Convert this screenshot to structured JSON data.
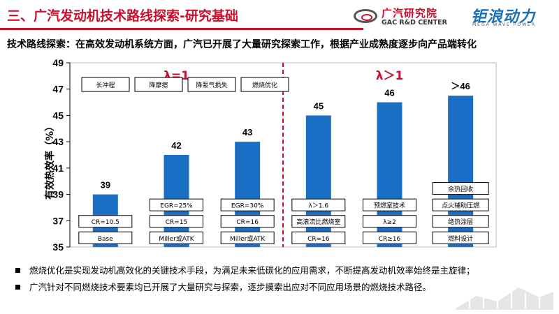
{
  "header": {
    "title": "三、广汽发动机技术路线探索-研究基础",
    "logo_gac_cn": "广汽研究院",
    "logo_gac_en": "GAC R&D CENTER",
    "logo_wave_cn": "钜浪动力",
    "logo_wave_en": "MEGA WAVE POWER"
  },
  "subtitle": "技术路线探索：在高效发动机系统方面，广汽已开展了大量研究探索工作，根据产业成熟度逐步向产品端转化",
  "colors": {
    "accent": "#c8102e",
    "bar": "#1a6fc4",
    "divider": "#c8102e"
  },
  "chart_data": {
    "type": "bar",
    "ylabel": "有效热效率（%）",
    "ylim": [
      35,
      49
    ],
    "yticks": [
      35,
      37,
      39,
      41,
      43,
      45,
      47,
      49
    ],
    "categories": [
      "Base",
      "Miller或ATK",
      "Miller或ATK",
      "CR=16",
      "CR≥16",
      "燃料设计"
    ],
    "values": [
      39,
      42,
      43,
      45,
      46,
      46.5
    ],
    "value_labels": [
      "39",
      "42",
      "43",
      "45",
      "46",
      "＞46"
    ],
    "regions": [
      {
        "label": "λ=1",
        "bars": [
          0,
          1,
          2
        ]
      },
      {
        "label": "λ＞1",
        "bars": [
          3,
          4,
          5
        ]
      }
    ],
    "top_techs": [
      "长冲程",
      "降摩擦",
      "降泵气损失",
      "燃烧优化"
    ],
    "bar_labels": [
      [
        "CR=10.5",
        "Base"
      ],
      [
        "EGR=25%",
        "CR=15",
        "Miller或ATK"
      ],
      [
        "EGR=30%",
        "CR=16",
        "Miller或ATK"
      ],
      [
        "λ＞1.6",
        "高滚流比燃烧室",
        "CR=16"
      ],
      [
        "预燃室技术",
        "λ≥2",
        "CR≥16"
      ],
      [
        "余热回收",
        "点火辅助压燃",
        "绝热涂层",
        "燃料设计"
      ]
    ]
  },
  "bullets": [
    "燃烧优化是实现发动机高效化的关键技术手段，为满足未来低碳化的应用需求，不断提高发动机效率始终是主旋律；",
    "广汽针对不同燃烧技术要素均已开展了大量研究与探索，逐步摸索出应对不同应用场景的燃烧技术路径。"
  ]
}
